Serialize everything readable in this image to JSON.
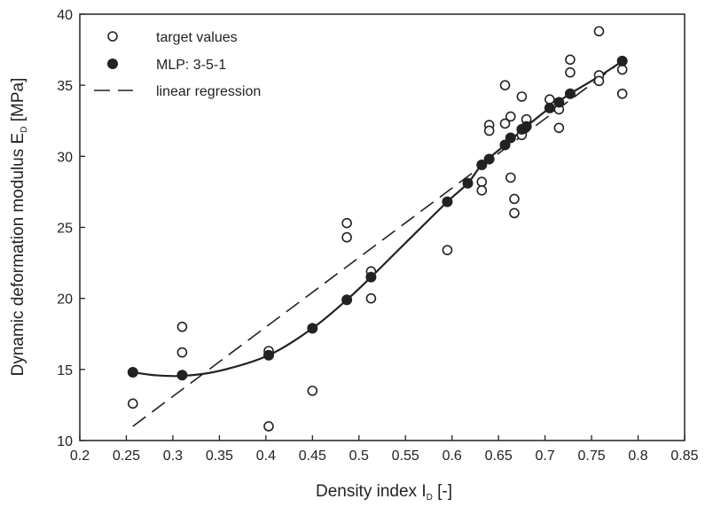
{
  "chart_data": {
    "type": "scatter",
    "xlabel_main": "Density index I",
    "xlabel_sub": "D",
    "xlabel_tail": " [-]",
    "ylabel_main": "Dynamic deformation modulus E",
    "ylabel_sub": "D",
    "ylabel_tail": " [MPa]",
    "xlim": [
      0.2,
      0.85
    ],
    "ylim": [
      10,
      40
    ],
    "x_ticks": [
      0.2,
      0.25,
      0.3,
      0.35,
      0.4,
      0.45,
      0.5,
      0.55,
      0.6,
      0.65,
      0.7,
      0.75,
      0.8,
      0.85
    ],
    "x_tick_labels": [
      "0.2",
      "0.25",
      "0.3",
      "0.35",
      "0.4",
      "0.45",
      "0.5",
      "0.55",
      "0.6",
      "0.65",
      "0.7",
      "0.75",
      "0.8",
      "0.85"
    ],
    "y_ticks": [
      10,
      15,
      20,
      25,
      30,
      35,
      40
    ],
    "y_tick_labels": [
      "10",
      "15",
      "20",
      "25",
      "30",
      "35",
      "40"
    ],
    "grid": false,
    "legend_position": "top-left",
    "series": [
      {
        "name": "target values",
        "marker": "open-circle",
        "points": [
          [
            0.257,
            12.6
          ],
          [
            0.31,
            18.0
          ],
          [
            0.31,
            16.2
          ],
          [
            0.403,
            16.3
          ],
          [
            0.403,
            11.0
          ],
          [
            0.45,
            13.5
          ],
          [
            0.487,
            25.3
          ],
          [
            0.487,
            24.3
          ],
          [
            0.513,
            21.9
          ],
          [
            0.513,
            20.0
          ],
          [
            0.595,
            23.4
          ],
          [
            0.632,
            28.2
          ],
          [
            0.632,
            27.6
          ],
          [
            0.64,
            32.2
          ],
          [
            0.64,
            31.8
          ],
          [
            0.657,
            35.0
          ],
          [
            0.657,
            32.3
          ],
          [
            0.663,
            32.8
          ],
          [
            0.663,
            28.5
          ],
          [
            0.667,
            27.0
          ],
          [
            0.667,
            26.0
          ],
          [
            0.675,
            34.2
          ],
          [
            0.675,
            31.5
          ],
          [
            0.68,
            32.6
          ],
          [
            0.705,
            34.0
          ],
          [
            0.71,
            33.5
          ],
          [
            0.715,
            33.3
          ],
          [
            0.715,
            32.0
          ],
          [
            0.727,
            36.8
          ],
          [
            0.727,
            35.9
          ],
          [
            0.758,
            38.8
          ],
          [
            0.758,
            35.7
          ],
          [
            0.758,
            35.3
          ],
          [
            0.783,
            36.7
          ],
          [
            0.783,
            36.1
          ],
          [
            0.783,
            34.4
          ]
        ]
      },
      {
        "name": "MLP: 3-5-1",
        "marker": "filled-circle",
        "points": [
          [
            0.257,
            14.8
          ],
          [
            0.31,
            14.6
          ],
          [
            0.403,
            16.0
          ],
          [
            0.45,
            17.9
          ],
          [
            0.487,
            19.9
          ],
          [
            0.513,
            21.5
          ],
          [
            0.595,
            26.8
          ],
          [
            0.617,
            28.1
          ],
          [
            0.632,
            29.4
          ],
          [
            0.64,
            29.8
          ],
          [
            0.657,
            30.8
          ],
          [
            0.663,
            31.3
          ],
          [
            0.675,
            31.9
          ],
          [
            0.68,
            32.1
          ],
          [
            0.705,
            33.4
          ],
          [
            0.715,
            33.8
          ],
          [
            0.727,
            34.4
          ],
          [
            0.783,
            36.7
          ]
        ],
        "curve": [
          [
            0.257,
            14.8
          ],
          [
            0.28,
            14.6
          ],
          [
            0.31,
            14.55
          ],
          [
            0.35,
            14.9
          ],
          [
            0.403,
            16.0
          ],
          [
            0.45,
            17.9
          ],
          [
            0.487,
            19.9
          ],
          [
            0.513,
            21.5
          ],
          [
            0.55,
            23.9
          ],
          [
            0.595,
            26.8
          ],
          [
            0.617,
            28.1
          ],
          [
            0.632,
            29.4
          ],
          [
            0.657,
            30.8
          ],
          [
            0.68,
            32.1
          ],
          [
            0.705,
            33.4
          ],
          [
            0.727,
            34.4
          ],
          [
            0.76,
            35.7
          ],
          [
            0.783,
            36.7
          ]
        ]
      },
      {
        "name": "linear regression",
        "marker": "dashed-line",
        "points": [
          [
            0.257,
            11.0
          ],
          [
            0.783,
            36.7
          ]
        ]
      }
    ]
  }
}
